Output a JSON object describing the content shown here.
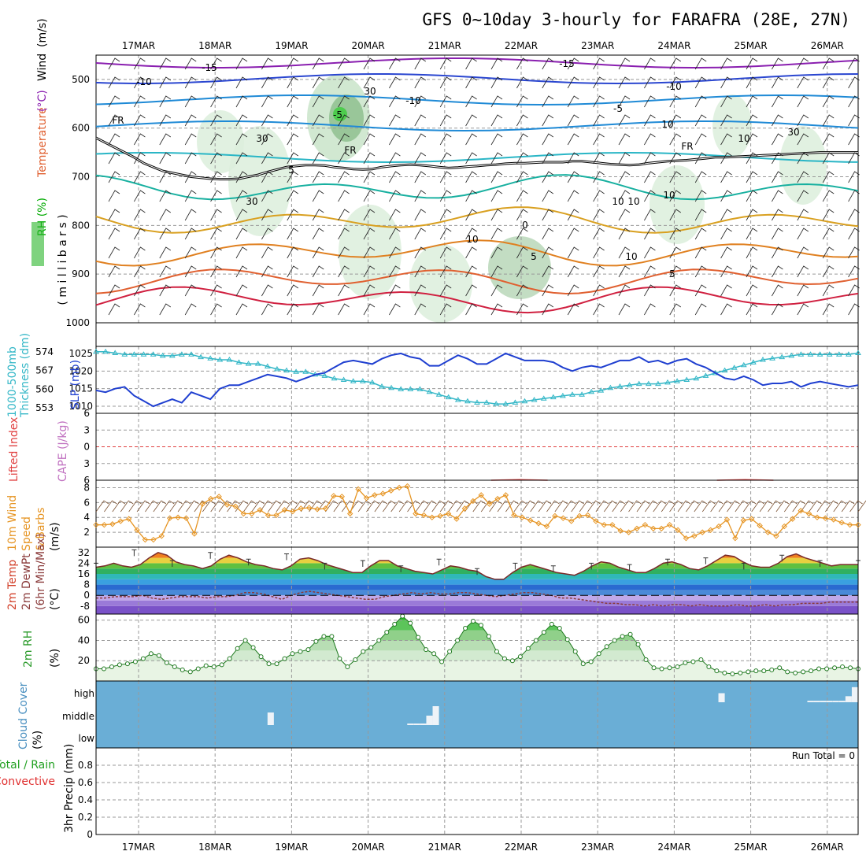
{
  "title": "GFS 0~10day 3-hourly for FARAFRA (28E, 27N)",
  "dates": [
    "17MAR",
    "18MAR",
    "19MAR",
    "20MAR",
    "21MAR",
    "22MAR",
    "23MAR",
    "24MAR",
    "25MAR",
    "26MAR"
  ],
  "colors": {
    "slp": "#1f3fd0",
    "thickness": "#34b7c7",
    "temp": "#d2402a",
    "dewpt": "#8a3a3a",
    "rh": "#2a9a2a",
    "cloud": "#6aaed6",
    "wind10": "#e69524"
  },
  "chart_data": [
    {
      "type": "heatmap",
      "name": "upper-air",
      "ylabel_parts": [
        "RH (%)",
        "Temperature",
        "(°C)",
        "Wind",
        "(m/s)"
      ],
      "ylabel2": "( m i l l i b a r s )",
      "yticks": [
        500,
        600,
        700,
        800,
        900,
        1000
      ],
      "ylim": [
        450,
        1000
      ],
      "contour_labels": [
        "-15",
        "-15",
        "-10",
        "-10",
        "-10",
        "-5",
        "-5",
        "FR",
        "FR",
        "FR",
        "5",
        "10",
        "0",
        "5",
        "10",
        "5",
        "30",
        "10",
        "30",
        "30",
        "30",
        "10",
        "10",
        "10",
        "10"
      ],
      "freezing_level_mb": [
        620,
        630,
        640,
        650,
        660,
        672,
        680,
        688,
        692,
        696,
        700,
        702,
        704,
        705,
        705,
        704,
        700,
        696,
        690,
        685,
        680,
        678,
        676,
        676,
        677,
        680,
        682,
        684,
        685,
        684,
        680,
        678,
        676,
        675,
        676,
        678,
        680,
        682,
        681,
        679,
        678,
        676,
        675,
        673,
        672,
        672,
        671,
        670,
        670,
        670,
        668,
        668,
        670,
        672,
        674,
        675,
        676,
        675,
        672,
        670,
        668,
        667,
        666,
        664,
        662,
        660,
        660,
        659,
        658,
        657,
        656,
        655,
        654,
        653,
        652,
        651,
        650,
        650,
        650,
        650,
        650
      ]
    },
    {
      "type": "line",
      "name": "slp-thickness",
      "ylabel_left": [
        "1000-500mb",
        "Thickness (dm)"
      ],
      "ylabel_right": "SLP (mb)",
      "yticks_thk": [
        553,
        560,
        567,
        574
      ],
      "yticks_slp": [
        1010,
        1015,
        1020,
        1025
      ],
      "series": [
        {
          "name": "SLP (mb)",
          "values": [
            1014.5,
            1014,
            1015,
            1015.5,
            1013,
            1011.5,
            1010,
            1011,
            1012,
            1011,
            1014,
            1013,
            1012,
            1015,
            1016,
            1016,
            1017,
            1018,
            1019,
            1018.5,
            1018,
            1017,
            1018,
            1019,
            1019.5,
            1021,
            1022.5,
            1023,
            1022.5,
            1022,
            1023.5,
            1024.5,
            1025,
            1024,
            1023.5,
            1021.5,
            1021.5,
            1023,
            1024.5,
            1023.5,
            1022,
            1022,
            1023.5,
            1025,
            1024,
            1023,
            1023,
            1023,
            1022.5,
            1021,
            1020,
            1021,
            1021.5,
            1021,
            1022,
            1023,
            1023,
            1024,
            1022.5,
            1023,
            1022,
            1023,
            1023.5,
            1022,
            1021,
            1019.5,
            1018,
            1017.5,
            1018.5,
            1017.5,
            1016,
            1016.5,
            1016.5,
            1017,
            1015.5,
            1016.5,
            1017,
            1016.5,
            1016,
            1015.5,
            1016
          ]
        },
        {
          "name": "1000-500mb Thickness (dm)",
          "values": [
            574,
            574,
            573.5,
            573,
            573,
            573,
            573,
            572.5,
            572.5,
            573,
            573,
            572,
            571.5,
            571,
            571,
            570,
            569.5,
            569.5,
            568.5,
            567.5,
            567,
            566.5,
            566.5,
            565.5,
            565,
            564,
            563.5,
            563,
            563,
            562.5,
            561,
            560.5,
            560,
            560,
            560,
            559,
            558,
            557,
            556,
            555.5,
            555,
            555,
            554.5,
            554.5,
            555,
            555.5,
            556,
            556.5,
            557,
            557.5,
            558,
            558,
            559,
            559.5,
            560.5,
            561,
            561.5,
            562,
            562,
            562,
            562.5,
            563,
            563.5,
            564,
            565,
            566,
            567,
            568,
            569,
            570,
            571,
            571.5,
            572,
            572.5,
            573,
            573,
            573,
            573,
            573,
            573,
            573.5
          ]
        }
      ]
    },
    {
      "type": "line",
      "name": "lifted-index-cape",
      "ylabel_left": "Lifted Index",
      "ylabel_right": "CAPE (J/kg)",
      "yticks": [
        -6,
        -3,
        0,
        3,
        6
      ],
      "yticks_labels": [
        "6",
        "3",
        "0",
        "3",
        "6"
      ],
      "ylim": [
        -6,
        6
      ],
      "series": [
        {
          "name": "Lifted Index",
          "values": [
            null,
            null,
            null,
            null,
            null,
            null,
            null,
            null,
            null,
            null,
            null,
            null,
            null,
            null,
            6,
            5.9,
            6,
            null,
            null,
            null,
            null,
            null,
            6,
            5.9,
            6,
            null,
            null,
            null
          ]
        }
      ]
    },
    {
      "type": "line",
      "name": "wind10",
      "ylabel": [
        "10m Wind",
        "Speed",
        "& Barbs",
        "(m/s)"
      ],
      "yticks": [
        2,
        4,
        6,
        8
      ],
      "ylim": [
        0,
        9
      ],
      "series": [
        {
          "name": "10m Wind Speed",
          "values": [
            3,
            3,
            3.1,
            3.5,
            3.8,
            2.3,
            1,
            1,
            1.5,
            3.9,
            4,
            3.9,
            1.8,
            5.8,
            6.5,
            6.8,
            5.7,
            5.5,
            4.5,
            4.5,
            5,
            4.3,
            4.3,
            5,
            4.8,
            5.2,
            5.3,
            5.1,
            5.2,
            6.9,
            6.8,
            4.5,
            7.8,
            6.6,
            7,
            7.2,
            7.6,
            8,
            8.2,
            4.5,
            4.3,
            4,
            4.2,
            4.5,
            3.8,
            5.2,
            6.2,
            7,
            5.8,
            6.5,
            7,
            4.3,
            4,
            3.6,
            3.2,
            2.8,
            4.2,
            3.9,
            3.5,
            4.2,
            4.3,
            3.5,
            3,
            3,
            2.2,
            2,
            2.5,
            3,
            2.5,
            2.5,
            3,
            2.3,
            1.2,
            1.5,
            2,
            2.3,
            2.8,
            3.7,
            1.2,
            3.6,
            3.8,
            2.9,
            2,
            1.5,
            2.8,
            3.8,
            4.9,
            4.5,
            4,
            3.9,
            3.7,
            3.3,
            3,
            3
          ]
        }
      ]
    },
    {
      "type": "area",
      "name": "temp-dewpt",
      "ylabel": [
        "2m Temp",
        "2m DewPt",
        "(6hr Min/Max)",
        "(°C)"
      ],
      "yticks": [
        -8,
        0,
        8,
        16,
        24,
        32
      ],
      "ylim": [
        -14,
        36
      ],
      "series": [
        {
          "name": "2m Temp",
          "values": [
            21,
            22,
            24,
            22,
            21,
            23,
            28,
            32,
            30,
            25,
            23,
            22,
            20,
            22,
            27,
            30,
            28,
            25,
            23,
            22,
            20,
            19,
            22,
            27,
            28,
            26,
            23,
            21,
            19,
            17,
            17,
            22,
            26,
            26,
            22,
            20,
            18,
            17,
            16,
            19,
            22,
            21,
            19,
            18,
            14,
            12,
            12,
            17,
            21,
            23,
            21,
            19,
            17,
            16,
            15,
            18,
            22,
            25,
            24,
            21,
            19,
            17,
            17,
            20,
            24,
            25,
            23,
            20,
            19,
            22,
            26,
            30,
            29,
            25,
            22,
            21,
            21,
            24,
            29,
            31,
            28,
            26,
            24,
            22,
            23,
            23,
            23
          ]
        },
        {
          "name": "2m DewPt",
          "values": [
            -2,
            -2,
            -1,
            -1,
            -1,
            0,
            -2,
            -3,
            -2,
            -1,
            -1,
            -1,
            -2,
            -1,
            -1,
            0,
            2,
            2,
            1,
            -1,
            -3,
            0,
            2,
            3,
            2,
            1,
            0,
            -1,
            -2,
            -3,
            -3,
            -1,
            0,
            1,
            2,
            1,
            2,
            1,
            1,
            2,
            2,
            1,
            0,
            -1,
            0,
            1,
            2,
            2,
            1,
            0,
            -2,
            -2,
            -3,
            -4,
            -5,
            -6,
            -6,
            -7,
            -7,
            -8,
            -7,
            -8,
            -7,
            -7,
            -8,
            -7,
            -8,
            -8,
            -8,
            -7,
            -8,
            -8,
            -7,
            -8,
            -7,
            -7,
            -6,
            -6,
            -6,
            -5,
            -5,
            -5,
            -5
          ]
        }
      ],
      "minmax_ticks": [
        24,
        34,
        26,
        32,
        27,
        31,
        24,
        26,
        22,
        27,
        20,
        24,
        22,
        24,
        23,
        27,
        28,
        24,
        30,
        26,
        26
      ]
    },
    {
      "type": "area",
      "name": "rh2m",
      "ylabel": [
        "2m RH",
        "(%)"
      ],
      "yticks": [
        20,
        40,
        60
      ],
      "ylim": [
        0,
        66
      ],
      "series": [
        {
          "name": "2m RH",
          "values": [
            12,
            12,
            14,
            16,
            17,
            19,
            22,
            27,
            25,
            18,
            14,
            11,
            9,
            12,
            15,
            14,
            16,
            22,
            32,
            40,
            33,
            24,
            17,
            17,
            22,
            27,
            29,
            31,
            39,
            44,
            44,
            22,
            14,
            21,
            29,
            33,
            40,
            48,
            56,
            64,
            57,
            43,
            31,
            27,
            19,
            29,
            40,
            52,
            59,
            55,
            44,
            29,
            22,
            20,
            24,
            32,
            40,
            48,
            56,
            52,
            41,
            29,
            17,
            19,
            27,
            34,
            40,
            44,
            46,
            36,
            21,
            13,
            12,
            13,
            14,
            18,
            19,
            21,
            14,
            10,
            8,
            7,
            8,
            9,
            10,
            10,
            11,
            13,
            9,
            8,
            9,
            10,
            12,
            12,
            13,
            14,
            13,
            12
          ]
        }
      ]
    },
    {
      "type": "heatmap",
      "name": "cloud-cover",
      "ylabel": [
        "Cloud Cover",
        "(%)"
      ],
      "yticks": [
        "high",
        "middle",
        "low"
      ],
      "series": [
        {
          "name": "high",
          "values": [
            0,
            0,
            0,
            0,
            0,
            0,
            0,
            0,
            0,
            0,
            0,
            0,
            0,
            0,
            0,
            0,
            0,
            0,
            0,
            0,
            0,
            0,
            0,
            0,
            0,
            0,
            0,
            0,
            0,
            0,
            0,
            0,
            0,
            0,
            0,
            0,
            0,
            0,
            0,
            0,
            0,
            0,
            0,
            0,
            0,
            0,
            0,
            0,
            0,
            0,
            0,
            0,
            0,
            0,
            0,
            0,
            0,
            0,
            0,
            0,
            0,
            0,
            0,
            0,
            0,
            0,
            0,
            0,
            0,
            0,
            0,
            0,
            0,
            0,
            0,
            0,
            0,
            0,
            0,
            0,
            0,
            0,
            0,
            0,
            0,
            0,
            0,
            0,
            0,
            0,
            0,
            0,
            0,
            0,
            0,
            0,
            0,
            0,
            30,
            0,
            0,
            0,
            0,
            0,
            0,
            0,
            0,
            0,
            0,
            0,
            0,
            0,
            5,
            5,
            5,
            5,
            5,
            5,
            20,
            50
          ]
        },
        {
          "name": "middle",
          "values": [
            0,
            0,
            0,
            0,
            0,
            0,
            0,
            0,
            0,
            0,
            0,
            0,
            0,
            0,
            0,
            0,
            0,
            0,
            0,
            0,
            0,
            0,
            0,
            0,
            0,
            0,
            0,
            40,
            0,
            0,
            0,
            0,
            0,
            0,
            0,
            0,
            0,
            0,
            0,
            0,
            0,
            0,
            0,
            0,
            0,
            0,
            0,
            0,
            0,
            5,
            5,
            5,
            30,
            60,
            0,
            0,
            0,
            0,
            0,
            0,
            0,
            0,
            0,
            0,
            0,
            0,
            0,
            0,
            0,
            0,
            0,
            0,
            0,
            0,
            0,
            0,
            0,
            0,
            0,
            0,
            0,
            0,
            0,
            0,
            0,
            0,
            0,
            0,
            0,
            0,
            0,
            0,
            0,
            0,
            0,
            0,
            0,
            0,
            0,
            0,
            0,
            0,
            0,
            0,
            0,
            0,
            0,
            0,
            0,
            0,
            0,
            0,
            0,
            0,
            0,
            0,
            0,
            0,
            0,
            0
          ]
        }
      ]
    },
    {
      "type": "bar",
      "name": "precip",
      "ylabel": [
        "3hr Precip (mm)"
      ],
      "ylabel_left": [
        "Total / Rain",
        "Convective"
      ],
      "yticks": [
        0,
        0.2,
        0.4,
        0.6,
        0.8
      ],
      "ylim": [
        0,
        1
      ],
      "annotation": "Run Total = 0",
      "values": []
    }
  ]
}
